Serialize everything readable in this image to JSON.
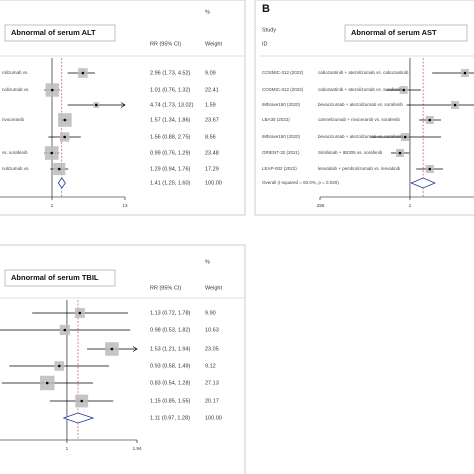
{
  "chart_data": [
    {
      "type": "forest",
      "title": "Abnormal of serum ALT",
      "header_pct": "%",
      "header_rr": "RR (95% CI)",
      "header_weight": "Weight",
      "treatments": [
        "rolizumab vs.",
        "nolizumab vs.",
        null,
        "rivoceranib",
        null,
        "vs. sorafenib",
        "nolizumab vs."
      ],
      "estimates": [
        2.96,
        1.01,
        4.74,
        1.57,
        1.56,
        0.99,
        1.29
      ],
      "ci_low": [
        1.73,
        0.76,
        1.73,
        1.34,
        0.88,
        0.76,
        0.94
      ],
      "ci_high": [
        4.52,
        1.32,
        13.02,
        1.86,
        2.75,
        1.29,
        1.76
      ],
      "value_labels": [
        "2.96 (1.73, 4.52)",
        "1.01 (0.76, 1.32)",
        "4.74 (1.73, 13.02)",
        "1.57 (1.34, 1.86)",
        "1.56 (0.88, 2.75)",
        "0.99 (0.76, 1.29)",
        "1.29 (0.94, 1.76)"
      ],
      "weights": [
        9.09,
        22.41,
        1.59,
        23.67,
        8.56,
        23.48,
        17.29
      ],
      "weight_labels": [
        "9.09",
        "22.41",
        "1.59",
        "23.67",
        "8.56",
        "23.48",
        "17.29"
      ],
      "overall": {
        "estimate": 1.41,
        "ci_low": 1.25,
        "ci_high": 1.6,
        "value_label": "1.41 (1.25, 1.60)",
        "weight": 100,
        "weight_label": "100.00"
      },
      "xlim": [
        0.0769,
        13
      ],
      "xticks": [
        1,
        13
      ],
      "log_x": true
    },
    {
      "type": "forest",
      "panel_label": "B",
      "title": "Abnormal of serum AST",
      "header_study": "Study",
      "header_id": "ID",
      "studies": [
        "COSMIC-312 (2022)",
        "COSMIC-312 (2022)",
        "IMbrave150 (2020)",
        "LBA35 (2022)",
        "IMbrave150 (2020)",
        "ORIENT-32 (2021)",
        "LEAP-002 (2022)"
      ],
      "treatments": [
        "cabozantinib + atezolizumab vs. cabozantinib",
        "cabozantinib + atezolizumab vs. sorafenib",
        "bevacizumab + atezolizumab vs. sorafenib",
        "camrelizumab + rivoceranib vs. sorafenib",
        "bevacizumab + atezolizumab vs. sorafenib",
        "Sintilimab + IBI305 vs. sorafenib",
        "lenvatinib + pembrolizumab vs. lenvatinib"
      ],
      "estimates": [
        2.3,
        0.91,
        1.98,
        1.35,
        0.93,
        0.86,
        1.35
      ],
      "ci_low": [
        1.4,
        0.7,
        0.95,
        1.15,
        0.55,
        0.75,
        1.1
      ],
      "ci_high": [
        3.91,
        1.18,
        3.91,
        1.6,
        1.6,
        0.99,
        1.65
      ],
      "overall": {
        "estimate": 1.22,
        "ci_low": 1.02,
        "ci_high": 1.46,
        "label": "Overall  (I-squared = 60.0%, p = 0.020)"
      },
      "xlim": [
        0.256,
        3.91
      ],
      "xticks": [
        {
          "value": 0.256,
          "label": ".256"
        },
        1
      ],
      "log_x": true
    },
    {
      "type": "forest",
      "title": "Abnormal of serum TBIL",
      "header_pct": "%",
      "header_rr": "RR (95% CI)",
      "header_weight": "Weight",
      "estimates": [
        1.13,
        0.98,
        1.53,
        0.93,
        0.83,
        1.15
      ],
      "ci_low": [
        0.72,
        0.53,
        1.21,
        0.58,
        0.54,
        0.85
      ],
      "ci_high": [
        1.78,
        1.82,
        1.94,
        1.49,
        1.28,
        1.55
      ],
      "value_labels": [
        "1.13 (0.72, 1.78)",
        "0.98 (0.53, 1.82)",
        "1.53 (1.21, 1.94)",
        "0.93 (0.58, 1.49)",
        "0.83 (0.54, 1.28)",
        "1.15 (0.85, 1.55)"
      ],
      "weights": [
        9.9,
        10.63,
        23.05,
        9.12,
        27.13,
        20.17
      ],
      "weight_labels": [
        "9.90",
        "10.63",
        "23.05",
        "9.12",
        "27.13",
        "20.17"
      ],
      "overall": {
        "estimate": 1.11,
        "ci_low": 0.97,
        "ci_high": 1.28,
        "value_label": "1.11 (0.97, 1.28)",
        "weight": 100,
        "weight_label": "100.00"
      },
      "xlim": [
        0.516,
        1.94
      ],
      "xticks": [
        1,
        1.94
      ],
      "log_x": true
    }
  ]
}
